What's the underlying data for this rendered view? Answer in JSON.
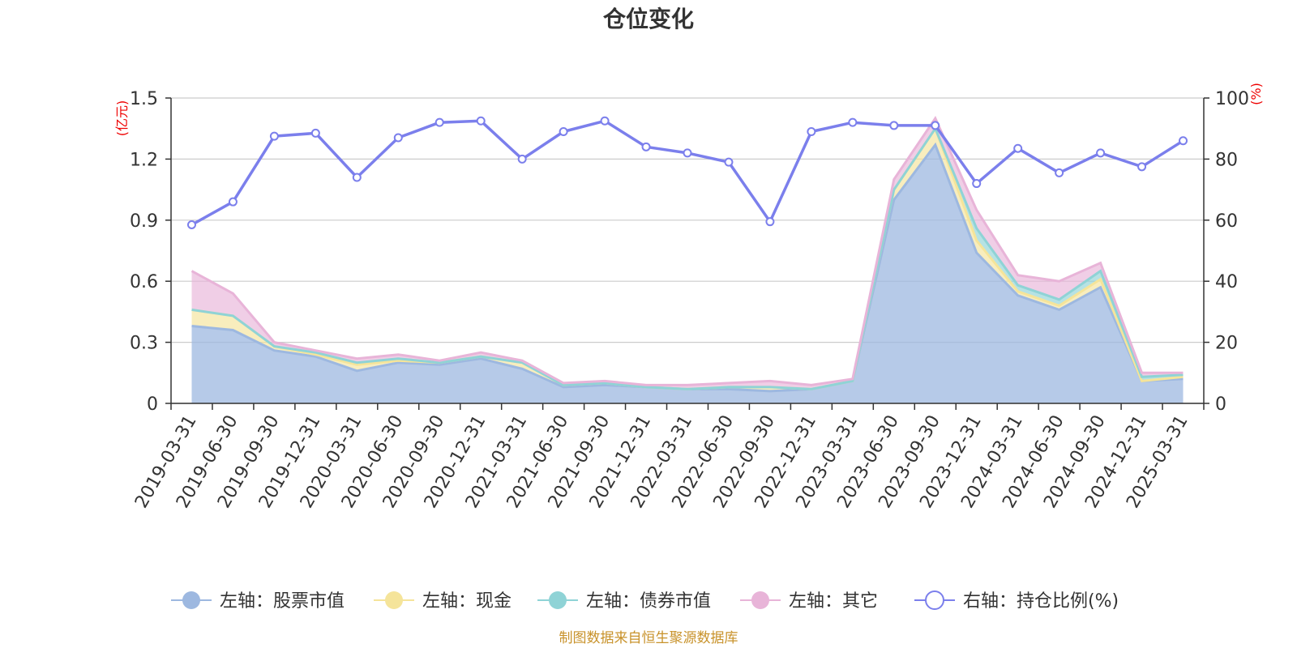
{
  "chart_data": {
    "type": "area",
    "title": "仓位变化",
    "left_axis_unit": "(亿元)",
    "right_axis_unit": "(%)",
    "x": [
      "2019-03-31",
      "2019-06-30",
      "2019-09-30",
      "2019-12-31",
      "2020-03-31",
      "2020-06-30",
      "2020-09-30",
      "2020-12-31",
      "2021-03-31",
      "2021-06-30",
      "2021-09-30",
      "2021-12-31",
      "2022-03-31",
      "2022-06-30",
      "2022-09-30",
      "2022-12-31",
      "2023-03-31",
      "2023-06-30",
      "2023-09-30",
      "2023-12-31",
      "2024-03-31",
      "2024-06-30",
      "2024-09-30",
      "2024-12-31",
      "2025-03-31"
    ],
    "y_left": {
      "min": 0,
      "max": 1.5,
      "ticks": [
        "0",
        "0.3",
        "0.6",
        "0.9",
        "1.2",
        "1.5"
      ]
    },
    "y_right": {
      "min": 0,
      "max": 100,
      "ticks": [
        "0",
        "20",
        "40",
        "60",
        "80",
        "100"
      ]
    },
    "grid": true,
    "legend_position": "bottom",
    "series": [
      {
        "name": "左轴：股票市值",
        "axis": "left",
        "stacked": true,
        "color": "#9db8e0",
        "values": [
          0.38,
          0.36,
          0.26,
          0.23,
          0.16,
          0.2,
          0.19,
          0.22,
          0.17,
          0.08,
          0.09,
          0.08,
          0.07,
          0.07,
          0.06,
          0.07,
          0.11,
          1.0,
          1.27,
          0.74,
          0.53,
          0.46,
          0.57,
          0.11,
          0.12
        ]
      },
      {
        "name": "左轴：现金",
        "axis": "left",
        "stacked": true,
        "color": "#f5e49a",
        "values": [
          0.08,
          0.07,
          0.02,
          0.01,
          0.03,
          0.01,
          0.01,
          0.01,
          0.03,
          0.01,
          0.01,
          0.0,
          0.0,
          0.01,
          0.02,
          0.0,
          0.0,
          0.05,
          0.08,
          0.06,
          0.02,
          0.02,
          0.04,
          0.0,
          0.01
        ]
      },
      {
        "name": "左轴：债券市值",
        "axis": "left",
        "stacked": true,
        "color": "#8fd3d6",
        "values": [
          0.0,
          0.0,
          0.0,
          0.01,
          0.01,
          0.01,
          0.0,
          0.0,
          0.0,
          0.0,
          0.0,
          0.0,
          0.0,
          0.0,
          0.0,
          0.0,
          0.0,
          0.0,
          0.0,
          0.06,
          0.03,
          0.03,
          0.04,
          0.02,
          0.01
        ]
      },
      {
        "name": "左轴：其它",
        "axis": "left",
        "stacked": true,
        "color": "#e8b4d8",
        "values": [
          0.19,
          0.11,
          0.02,
          0.01,
          0.02,
          0.02,
          0.01,
          0.02,
          0.01,
          0.01,
          0.01,
          0.01,
          0.02,
          0.02,
          0.03,
          0.02,
          0.01,
          0.05,
          0.05,
          0.09,
          0.05,
          0.09,
          0.04,
          0.02,
          0.01
        ]
      },
      {
        "name": "右轴：持仓比例(%)",
        "axis": "right",
        "type": "line",
        "color": "#7b7fec",
        "values": [
          58.5,
          66,
          87.5,
          88.5,
          74,
          87,
          92,
          92.5,
          80,
          89,
          92.5,
          84,
          82,
          79,
          59.5,
          89,
          92,
          91,
          91,
          72,
          83.5,
          75.5,
          82,
          77.5,
          86
        ]
      }
    ]
  },
  "footer": {
    "source": "制图数据来自恒生聚源数据库"
  }
}
